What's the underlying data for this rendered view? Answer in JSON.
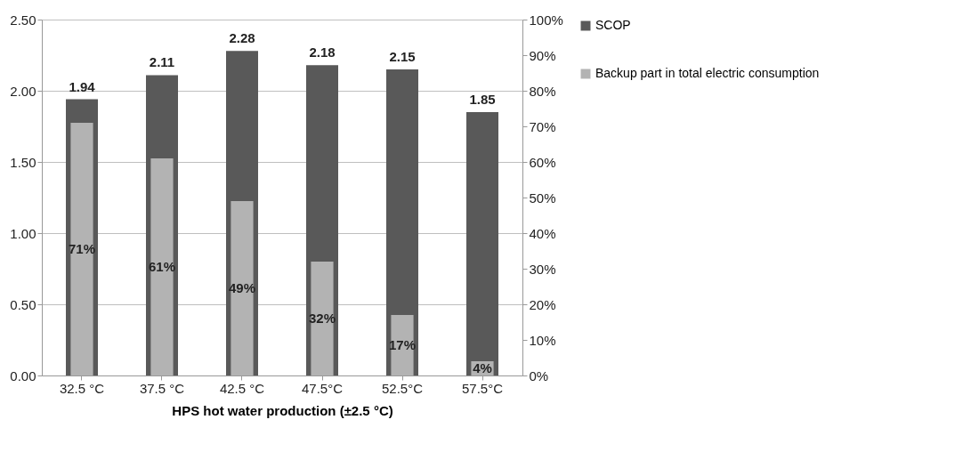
{
  "chart_data": {
    "type": "bar",
    "xlabel": "HPS hot water production (±2.5 °C)",
    "categories": [
      "32.5 °C",
      "37.5 °C",
      "42.5 °C",
      "47.5°C",
      "52.5°C",
      "57.5°C"
    ],
    "series": [
      {
        "name": "SCOP",
        "color": "#595959",
        "values": [
          1.94,
          2.11,
          2.28,
          2.18,
          2.15,
          1.85
        ],
        "value_labels": [
          "1.94",
          "2.11",
          "2.28",
          "2.18",
          "2.15",
          "1.85"
        ]
      },
      {
        "name": "Backup part in total electric consumption",
        "color": "#b3b3b3",
        "axis": "y2",
        "values": [
          71,
          61,
          49,
          32,
          17,
          4
        ],
        "value_labels": [
          "71%",
          "61%",
          "49%",
          "32%",
          "17%",
          "4%"
        ]
      }
    ],
    "ylim": [
      0,
      2.5
    ],
    "yticks": [
      {
        "value": 0,
        "label": "0.00"
      },
      {
        "value": 0.5,
        "label": "0.50"
      },
      {
        "value": 1,
        "label": "1.00"
      },
      {
        "value": 1.5,
        "label": "1.50"
      },
      {
        "value": 2,
        "label": "2.00"
      },
      {
        "value": 2.5,
        "label": "2.50"
      }
    ],
    "y2lim": [
      0,
      100
    ],
    "y2ticks": [
      {
        "value": 0,
        "label": "0%"
      },
      {
        "value": 10,
        "label": "10%"
      },
      {
        "value": 20,
        "label": "20%"
      },
      {
        "value": 30,
        "label": "30%"
      },
      {
        "value": 40,
        "label": "40%"
      },
      {
        "value": 50,
        "label": "50%"
      },
      {
        "value": 60,
        "label": "60%"
      },
      {
        "value": 70,
        "label": "70%"
      },
      {
        "value": 80,
        "label": "80%"
      },
      {
        "value": 90,
        "label": "90%"
      },
      {
        "value": 100,
        "label": "100%"
      }
    ],
    "grid": "y",
    "legend": "right"
  }
}
